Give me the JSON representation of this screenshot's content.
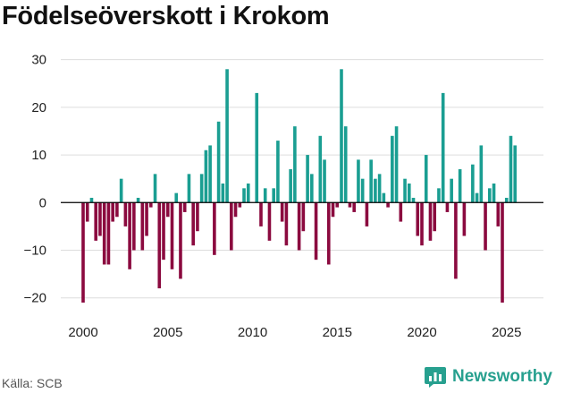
{
  "chart_data": {
    "type": "bar",
    "title": "Födelseöverskott i Krokom",
    "source": "Källa: SCB",
    "brand": "Newsworthy",
    "xlabel": "",
    "ylabel": "",
    "ylim": [
      -24,
      32
    ],
    "yticks": [
      -20,
      -10,
      0,
      10,
      20,
      30
    ],
    "ytick_labels": [
      "−20",
      "−10",
      "0",
      "10",
      "20",
      "30"
    ],
    "xticks": [
      2000,
      2005,
      2010,
      2015,
      2020,
      2025
    ],
    "xtick_labels": [
      "2000",
      "2005",
      "2010",
      "2015",
      "2020",
      "2025"
    ],
    "x_start": 2000.0,
    "x_step": 0.25,
    "grid": true,
    "colors": {
      "positive": "#1a9e92",
      "negative": "#8b0a3f",
      "zero_line": "#000000",
      "grid": "#dddddd"
    },
    "values": [
      -21,
      -4,
      1,
      -8,
      -7,
      -13,
      -13,
      -4,
      -3,
      5,
      -5,
      -14,
      -10,
      1,
      -10,
      -7,
      -1,
      6,
      -18,
      -12,
      -3,
      -14,
      2,
      -16,
      -2,
      6,
      -9,
      -6,
      6,
      11,
      12,
      -11,
      17,
      4,
      28,
      -10,
      -3,
      -1,
      3,
      4,
      0,
      23,
      -5,
      3,
      -8,
      3,
      13,
      -4,
      -9,
      7,
      16,
      -10,
      -6,
      10,
      6,
      -12,
      14,
      9,
      -13,
      -3,
      -1,
      28,
      16,
      -1,
      -2,
      9,
      5,
      -5,
      9,
      5,
      6,
      2,
      -1,
      14,
      16,
      -4,
      5,
      4,
      1,
      -7,
      -9,
      10,
      -8,
      -6,
      3,
      23,
      -2,
      5,
      -16,
      7,
      -7,
      0,
      8,
      2,
      12,
      -10,
      3,
      4,
      -5,
      -21,
      1,
      14,
      12
    ]
  }
}
